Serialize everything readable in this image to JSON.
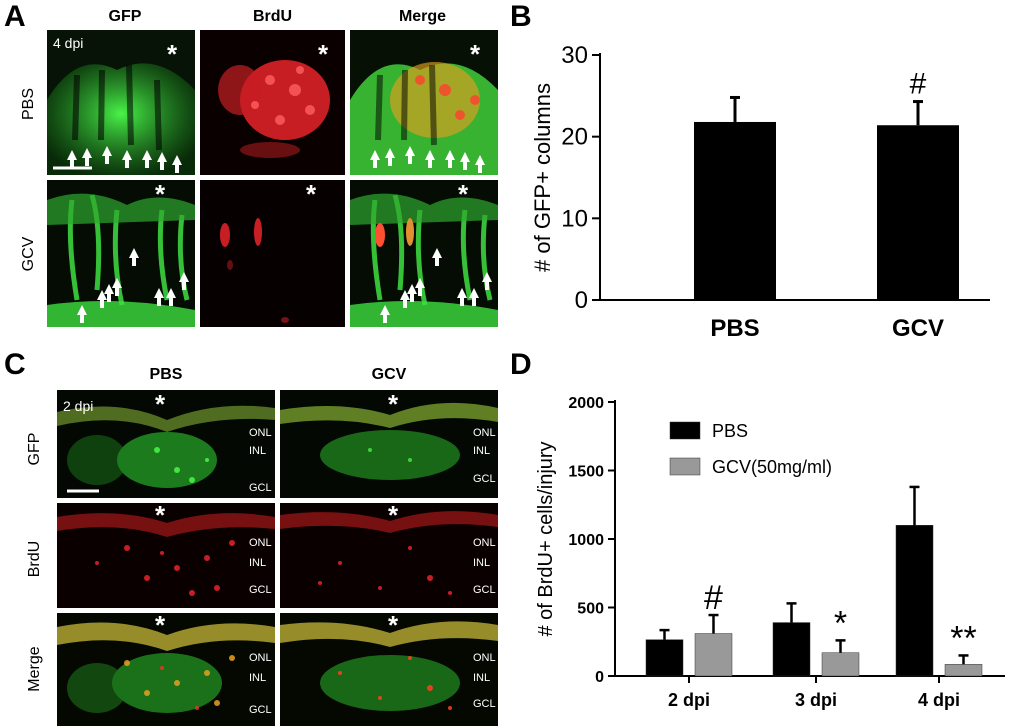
{
  "panel_a": {
    "letter": "A",
    "columns": [
      "GFP",
      "BrdU",
      "Merge"
    ],
    "rows": [
      "PBS",
      "GCV"
    ],
    "timepoint": "4 dpi",
    "asterisk": "*"
  },
  "panel_c": {
    "letter": "C",
    "columns": [
      "PBS",
      "GCV"
    ],
    "rows": [
      "GFP",
      "BrdU",
      "Merge"
    ],
    "timepoint": "2 dpi",
    "asterisk": "*",
    "layers": [
      "ONL",
      "INL",
      "GCL"
    ]
  },
  "panel_b": {
    "letter": "B"
  },
  "panel_d": {
    "letter": "D"
  },
  "colors": {
    "gfp": "#3fe040",
    "brdu": "#e8242a",
    "merge": "#d9c438",
    "black_bar": "#000000",
    "gray_bar": "#999999"
  },
  "chart_data": [
    {
      "type": "bar",
      "categories": [
        "PBS",
        "GCV"
      ],
      "values": [
        21.8,
        21.4
      ],
      "errors": [
        3.0,
        2.9
      ],
      "annotations": [
        "",
        "#"
      ],
      "xlabel": "",
      "ylabel": "# of GFP+ columns",
      "ylim": [
        0,
        30
      ],
      "yticks": [
        "0",
        "10",
        "20",
        "30"
      ],
      "grid": false
    },
    {
      "type": "bar",
      "categories": [
        "2 dpi",
        "3 dpi",
        "4 dpi"
      ],
      "series": [
        {
          "name": "PBS",
          "values": [
            265,
            390,
            1100
          ],
          "errors": [
            70,
            140,
            280
          ],
          "annotations": [
            "",
            "",
            ""
          ]
        },
        {
          "name": "GCV(50mg/ml)",
          "values": [
            310,
            170,
            85
          ],
          "errors": [
            135,
            90,
            65
          ],
          "annotations": [
            "#",
            "*",
            "**"
          ]
        }
      ],
      "xlabel": "",
      "ylabel": "# of BrdU+ cells/injury",
      "ylim": [
        0,
        2000
      ],
      "yticks": [
        "0",
        "500",
        "1000",
        "1500",
        "2000"
      ],
      "legend": "top-left",
      "grid": false
    }
  ]
}
